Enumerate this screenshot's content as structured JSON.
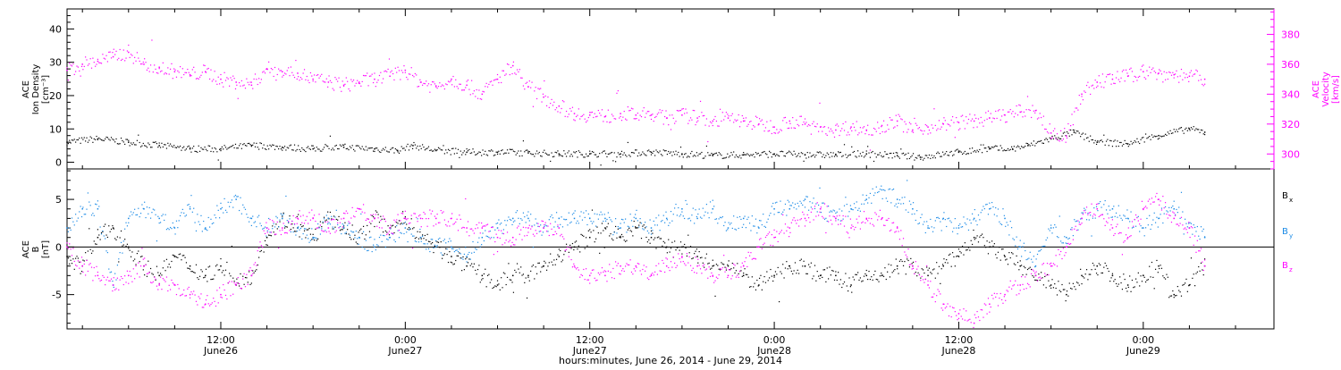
{
  "colors": {
    "black": "#000000",
    "magenta": "#ff00ff",
    "blue": "#1a8ae6"
  },
  "x_axis": {
    "title": "hours:minutes, June 26, 2014 - June 29, 2014",
    "ticks": [
      {
        "x": 12,
        "label": "12:00",
        "date": "June26"
      },
      {
        "x": 24,
        "label": "0:00",
        "date": "June27"
      },
      {
        "x": 36,
        "label": "12:00",
        "date": "June27"
      },
      {
        "x": 48,
        "label": "0:00",
        "date": "June28"
      },
      {
        "x": 60,
        "label": "12:00",
        "date": "June28"
      },
      {
        "x": 72,
        "label": "0:00",
        "date": "June29"
      }
    ]
  },
  "chart_data": [
    {
      "type": "scatter",
      "panel": "top",
      "xlim": [
        2,
        80.5
      ],
      "left_axis": {
        "label_lines": [
          "ACE",
          "Ion Density",
          "[cm⁻³]"
        ],
        "ylim": [
          -2,
          46
        ],
        "ticks": [
          0,
          10,
          20,
          30,
          40
        ]
      },
      "right_axis": {
        "label_lines": [
          "ACE",
          "Velocity",
          "[km/s]"
        ],
        "ylim": [
          290,
          397
        ],
        "ticks": [
          300,
          320,
          340,
          360,
          380
        ]
      },
      "series": [
        {
          "name": "",
          "axis": "left",
          "color": "black",
          "x": [
            2,
            4,
            6,
            8,
            10,
            12,
            14,
            16,
            18,
            20,
            22,
            23.5,
            24.5,
            26,
            28,
            30,
            32,
            34,
            36,
            38,
            40,
            42,
            44,
            46,
            48,
            50,
            52,
            54,
            56,
            57.5,
            60,
            62,
            63.5,
            64.5,
            66,
            67.5,
            69,
            71,
            73,
            75,
            76
          ],
          "y": [
            6,
            7,
            6,
            5,
            4,
            4,
            5,
            4.5,
            4,
            4.5,
            4,
            3.5,
            5,
            3.5,
            3,
            3,
            2.8,
            2.5,
            2.5,
            2.5,
            3,
            2.5,
            2,
            2.2,
            2.5,
            2.2,
            2.2,
            2.5,
            2,
            1.5,
            3,
            4,
            4,
            5,
            7,
            9,
            6,
            5.5,
            8,
            10,
            9
          ]
        },
        {
          "name": "",
          "axis": "right",
          "color": "magenta",
          "x": [
            2,
            3,
            4,
            5,
            6,
            7,
            8,
            9,
            10,
            11,
            12,
            13,
            14,
            15,
            16,
            17,
            18,
            19,
            20,
            21,
            22,
            23,
            24,
            25,
            26,
            27,
            28,
            29,
            30,
            31,
            32,
            33,
            34,
            35,
            36,
            37,
            38,
            39,
            40,
            41,
            42,
            43,
            44,
            45,
            46,
            47,
            48,
            49,
            50,
            51,
            52,
            53,
            54,
            55,
            56,
            57,
            58,
            59,
            60,
            61,
            62,
            63,
            64,
            65,
            66,
            67,
            68,
            69,
            70,
            71,
            72,
            73,
            74,
            75,
            76
          ],
          "y": [
            356,
            360,
            362,
            365,
            368,
            360,
            358,
            355,
            353,
            355,
            350,
            348,
            346,
            357,
            355,
            354,
            350,
            348,
            346,
            348,
            350,
            352,
            356,
            348,
            345,
            350,
            346,
            340,
            350,
            359,
            345,
            338,
            332,
            327,
            326,
            325,
            327,
            326,
            326,
            324,
            326,
            324,
            322,
            324,
            322,
            320,
            318,
            322,
            320,
            318,
            316,
            318,
            316,
            319,
            322,
            316,
            318,
            320,
            321,
            322,
            324,
            326,
            328,
            329,
            314,
            312,
            340,
            348,
            350,
            352,
            355,
            354,
            353,
            352,
            350
          ]
        }
      ]
    },
    {
      "type": "scatter",
      "panel": "bottom",
      "xlim": [
        2,
        80.5
      ],
      "left_axis": {
        "label_lines": [
          "ACE",
          "B",
          "[nT]"
        ],
        "ylim": [
          -8.6,
          8.2
        ],
        "ticks": [
          -5,
          0,
          5
        ]
      },
      "series": [
        {
          "name": "Bx",
          "color": "black",
          "x": [
            2,
            3,
            4,
            5,
            6,
            7,
            8,
            9,
            10,
            11,
            12,
            13,
            14,
            15,
            16,
            17,
            18,
            19,
            20,
            21,
            22,
            23,
            24,
            25,
            26,
            27,
            28,
            29,
            30,
            31,
            32,
            33,
            34,
            35,
            36,
            37,
            38,
            39,
            40,
            41,
            42,
            43,
            44,
            45,
            46,
            47,
            48,
            49,
            50,
            51,
            52,
            53,
            54,
            55,
            56,
            57,
            58,
            59,
            60,
            61,
            62,
            63,
            64,
            65,
            66,
            67,
            68,
            69,
            70,
            71,
            72,
            73,
            74,
            75,
            76
          ],
          "y": [
            -1,
            -2,
            1,
            2,
            0,
            -2,
            -3,
            -1,
            -2,
            -3,
            -2,
            -4,
            -3,
            1,
            3,
            2,
            1,
            3,
            2,
            1,
            3,
            2,
            3,
            1,
            0,
            -1,
            -2,
            -3,
            -4,
            -3,
            -3,
            -2,
            -1,
            0,
            1,
            2,
            1,
            2,
            1,
            0,
            0,
            -1,
            -2,
            -2,
            -3,
            -4,
            -3,
            -2,
            -2,
            -3,
            -3,
            -4,
            -3,
            -3,
            -2,
            -2,
            -3,
            -2,
            -1,
            1,
            0,
            -1,
            -2,
            -3,
            -4,
            -5,
            -3,
            -2,
            -3,
            -4,
            -3,
            -2,
            -5,
            -4,
            -2
          ]
        },
        {
          "name": "By",
          "color": "blue",
          "x": [
            2,
            3,
            4,
            5,
            6,
            7,
            8,
            9,
            10,
            11,
            12,
            13,
            14,
            15,
            16,
            17,
            18,
            19,
            20,
            21,
            22,
            23,
            24,
            25,
            26,
            27,
            28,
            29,
            30,
            31,
            32,
            33,
            34,
            35,
            36,
            37,
            38,
            39,
            40,
            41,
            42,
            43,
            44,
            45,
            46,
            47,
            48,
            49,
            50,
            51,
            52,
            53,
            54,
            55,
            56,
            57,
            58,
            59,
            60,
            61,
            62,
            63,
            64,
            65,
            66,
            67,
            68,
            69,
            70,
            71,
            72,
            73,
            74,
            75,
            76
          ],
          "y": [
            2,
            4,
            4,
            -4,
            3,
            4,
            3,
            2,
            4,
            2,
            4,
            5,
            3,
            2,
            3,
            2,
            1,
            3,
            2,
            1,
            0,
            1,
            2,
            1,
            0,
            0,
            -1,
            1,
            2,
            3,
            3,
            2,
            3,
            3,
            3,
            3,
            2,
            3,
            2,
            3,
            4,
            3,
            4,
            2,
            3,
            2,
            4,
            4,
            5,
            4,
            3,
            4,
            5,
            6,
            5,
            4,
            2,
            3,
            2,
            3,
            4,
            3,
            0,
            -2,
            2,
            1,
            3,
            4,
            4,
            3,
            2,
            3,
            4,
            2,
            1
          ]
        },
        {
          "name": "Bz",
          "color": "magenta",
          "x": [
            2,
            3,
            4,
            5,
            6,
            7,
            8,
            9,
            10,
            11,
            12,
            13,
            14,
            15,
            16,
            17,
            18,
            19,
            20,
            21,
            22,
            23,
            24,
            25,
            26,
            27,
            28,
            29,
            30,
            31,
            32,
            33,
            34,
            35,
            36,
            37,
            38,
            39,
            40,
            41,
            42,
            43,
            44,
            45,
            46,
            47,
            48,
            49,
            50,
            51,
            52,
            53,
            54,
            55,
            56,
            57,
            58,
            59,
            60,
            61,
            62,
            63,
            64,
            65,
            66,
            67,
            68,
            69,
            70,
            71,
            72,
            73,
            74,
            75,
            76
          ],
          "y": [
            0,
            -2,
            -3,
            -4,
            -3,
            -2,
            -4,
            -4,
            -5,
            -6,
            -5,
            -4,
            -3,
            2,
            2,
            3,
            3,
            2,
            3,
            4,
            3,
            2,
            3,
            3,
            3,
            3,
            2,
            2,
            1,
            1,
            2,
            2,
            2,
            -2,
            -3,
            -3,
            -2,
            -2,
            -3,
            -2,
            -1,
            -2,
            -3,
            -3,
            -2,
            0,
            1,
            2,
            3,
            4,
            3,
            2,
            3,
            3,
            2,
            -2,
            -4,
            -6,
            -7,
            -8,
            -6,
            -5,
            -4,
            -3,
            -2,
            0,
            3,
            4,
            2,
            1,
            4,
            5,
            3,
            2,
            -2
          ]
        }
      ]
    }
  ],
  "legend": {
    "bx": {
      "main": "B",
      "sub": "x"
    },
    "by": {
      "main": "B",
      "sub": "y"
    },
    "bz": {
      "main": "B",
      "sub": "z"
    }
  }
}
